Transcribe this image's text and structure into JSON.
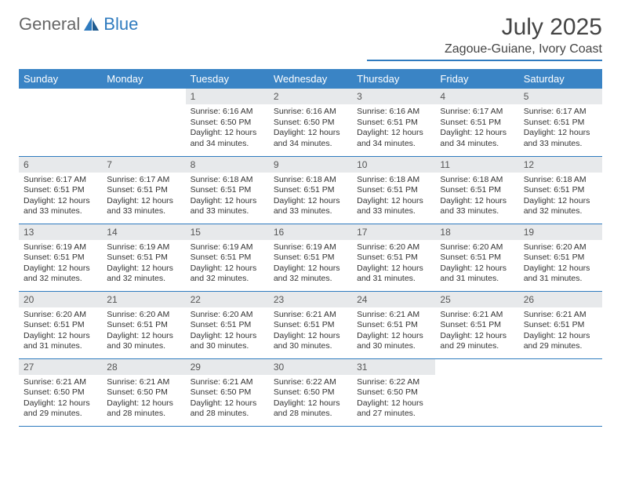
{
  "logo": {
    "text1": "General",
    "text2": "Blue"
  },
  "title": "July 2025",
  "location": "Zagoue-Guiane, Ivory Coast",
  "colors": {
    "header_bg": "#3a84c5",
    "accent": "#2f7bbf",
    "daynum_bg": "#e7e9eb",
    "text": "#333333",
    "page_bg": "#ffffff"
  },
  "weekdays": [
    "Sunday",
    "Monday",
    "Tuesday",
    "Wednesday",
    "Thursday",
    "Friday",
    "Saturday"
  ],
  "weeks": [
    [
      null,
      null,
      {
        "n": "1",
        "sr": "6:16 AM",
        "ss": "6:50 PM",
        "dl": "12 hours and 34 minutes."
      },
      {
        "n": "2",
        "sr": "6:16 AM",
        "ss": "6:50 PM",
        "dl": "12 hours and 34 minutes."
      },
      {
        "n": "3",
        "sr": "6:16 AM",
        "ss": "6:51 PM",
        "dl": "12 hours and 34 minutes."
      },
      {
        "n": "4",
        "sr": "6:17 AM",
        "ss": "6:51 PM",
        "dl": "12 hours and 34 minutes."
      },
      {
        "n": "5",
        "sr": "6:17 AM",
        "ss": "6:51 PM",
        "dl": "12 hours and 33 minutes."
      }
    ],
    [
      {
        "n": "6",
        "sr": "6:17 AM",
        "ss": "6:51 PM",
        "dl": "12 hours and 33 minutes."
      },
      {
        "n": "7",
        "sr": "6:17 AM",
        "ss": "6:51 PM",
        "dl": "12 hours and 33 minutes."
      },
      {
        "n": "8",
        "sr": "6:18 AM",
        "ss": "6:51 PM",
        "dl": "12 hours and 33 minutes."
      },
      {
        "n": "9",
        "sr": "6:18 AM",
        "ss": "6:51 PM",
        "dl": "12 hours and 33 minutes."
      },
      {
        "n": "10",
        "sr": "6:18 AM",
        "ss": "6:51 PM",
        "dl": "12 hours and 33 minutes."
      },
      {
        "n": "11",
        "sr": "6:18 AM",
        "ss": "6:51 PM",
        "dl": "12 hours and 33 minutes."
      },
      {
        "n": "12",
        "sr": "6:18 AM",
        "ss": "6:51 PM",
        "dl": "12 hours and 32 minutes."
      }
    ],
    [
      {
        "n": "13",
        "sr": "6:19 AM",
        "ss": "6:51 PM",
        "dl": "12 hours and 32 minutes."
      },
      {
        "n": "14",
        "sr": "6:19 AM",
        "ss": "6:51 PM",
        "dl": "12 hours and 32 minutes."
      },
      {
        "n": "15",
        "sr": "6:19 AM",
        "ss": "6:51 PM",
        "dl": "12 hours and 32 minutes."
      },
      {
        "n": "16",
        "sr": "6:19 AM",
        "ss": "6:51 PM",
        "dl": "12 hours and 32 minutes."
      },
      {
        "n": "17",
        "sr": "6:20 AM",
        "ss": "6:51 PM",
        "dl": "12 hours and 31 minutes."
      },
      {
        "n": "18",
        "sr": "6:20 AM",
        "ss": "6:51 PM",
        "dl": "12 hours and 31 minutes."
      },
      {
        "n": "19",
        "sr": "6:20 AM",
        "ss": "6:51 PM",
        "dl": "12 hours and 31 minutes."
      }
    ],
    [
      {
        "n": "20",
        "sr": "6:20 AM",
        "ss": "6:51 PM",
        "dl": "12 hours and 31 minutes."
      },
      {
        "n": "21",
        "sr": "6:20 AM",
        "ss": "6:51 PM",
        "dl": "12 hours and 30 minutes."
      },
      {
        "n": "22",
        "sr": "6:20 AM",
        "ss": "6:51 PM",
        "dl": "12 hours and 30 minutes."
      },
      {
        "n": "23",
        "sr": "6:21 AM",
        "ss": "6:51 PM",
        "dl": "12 hours and 30 minutes."
      },
      {
        "n": "24",
        "sr": "6:21 AM",
        "ss": "6:51 PM",
        "dl": "12 hours and 30 minutes."
      },
      {
        "n": "25",
        "sr": "6:21 AM",
        "ss": "6:51 PM",
        "dl": "12 hours and 29 minutes."
      },
      {
        "n": "26",
        "sr": "6:21 AM",
        "ss": "6:51 PM",
        "dl": "12 hours and 29 minutes."
      }
    ],
    [
      {
        "n": "27",
        "sr": "6:21 AM",
        "ss": "6:50 PM",
        "dl": "12 hours and 29 minutes."
      },
      {
        "n": "28",
        "sr": "6:21 AM",
        "ss": "6:50 PM",
        "dl": "12 hours and 28 minutes."
      },
      {
        "n": "29",
        "sr": "6:21 AM",
        "ss": "6:50 PM",
        "dl": "12 hours and 28 minutes."
      },
      {
        "n": "30",
        "sr": "6:22 AM",
        "ss": "6:50 PM",
        "dl": "12 hours and 28 minutes."
      },
      {
        "n": "31",
        "sr": "6:22 AM",
        "ss": "6:50 PM",
        "dl": "12 hours and 27 minutes."
      },
      null,
      null
    ]
  ],
  "labels": {
    "sunrise": "Sunrise:",
    "sunset": "Sunset:",
    "daylight": "Daylight:"
  }
}
